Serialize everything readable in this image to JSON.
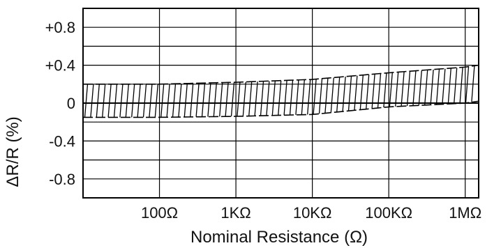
{
  "chart_data": {
    "type": "area",
    "xlabel": "Nominal Resistance (Ω)",
    "ylabel": "ΔR/R (%)",
    "x_scale": "log",
    "x_unit": "Ω",
    "xlim": [
      10,
      1500000
    ],
    "ylim": [
      -1.0,
      1.0
    ],
    "x_ticks": [
      {
        "value": 100,
        "label": "100Ω"
      },
      {
        "value": 1000,
        "label": "1KΩ"
      },
      {
        "value": 10000,
        "label": "10KΩ"
      },
      {
        "value": 100000,
        "label": "100KΩ"
      },
      {
        "value": 1000000,
        "label": "1MΩ"
      }
    ],
    "y_ticks": [
      {
        "value": 0.8,
        "label": "+0.8"
      },
      {
        "value": 0.4,
        "label": "+0.4"
      },
      {
        "value": 0,
        "label": "0"
      },
      {
        "value": -0.4,
        "label": "-0.4"
      },
      {
        "value": -0.8,
        "label": "-0.8"
      }
    ],
    "grid": true,
    "band": {
      "name": "",
      "x": [
        10,
        100,
        1000,
        10000,
        100000,
        1000000,
        1500000
      ],
      "upper": [
        0.2,
        0.2,
        0.22,
        0.25,
        0.32,
        0.38,
        0.4
      ],
      "lower": [
        -0.15,
        -0.15,
        -0.14,
        -0.12,
        -0.04,
        0.0,
        0.02
      ]
    },
    "colors": {
      "line": "#000000",
      "grid": "#000000",
      "background": "#ffffff"
    }
  }
}
